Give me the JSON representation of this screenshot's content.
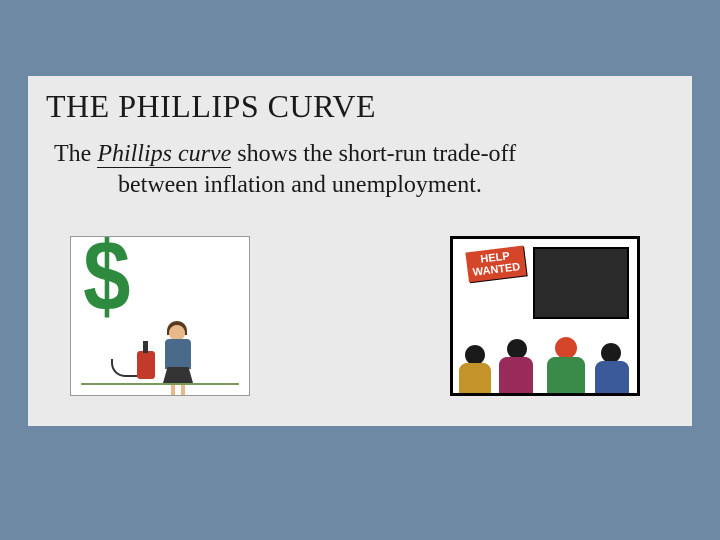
{
  "slide": {
    "title": "THE PHILLIPS CURVE",
    "text_prefix": "The ",
    "text_italic": "Phillips curve",
    "text_line1_rest": " shows the short-run trade-off",
    "text_line2": "between inflation and unemployment.",
    "help_sign_l1": "HELP",
    "help_sign_l2": "WANTED"
  },
  "styling": {
    "page_bg": "#6d89a3",
    "panel_bg": "#eaeaea",
    "title_fontsize": 32,
    "body_fontsize": 24,
    "text_color": "#1a1a1a",
    "left_illus": {
      "dollar_color": "#2d8a3e",
      "pump_color": "#c43a2a",
      "shirt_color": "#4a6a8a",
      "hair_color": "#5a3a1a",
      "skin_color": "#e8b88a",
      "ground_color": "#7a9a5a"
    },
    "right_illus": {
      "border_color": "#000000",
      "poster_bg": "#2a2a2a",
      "sign_bg": "#d4452a",
      "sign_text_color": "#ffffff",
      "fig_colors": [
        "#c4942a",
        "#9a2a5a",
        "#3a8a4a",
        "#3a5a9a"
      ],
      "head_red": "#d4452a"
    }
  }
}
